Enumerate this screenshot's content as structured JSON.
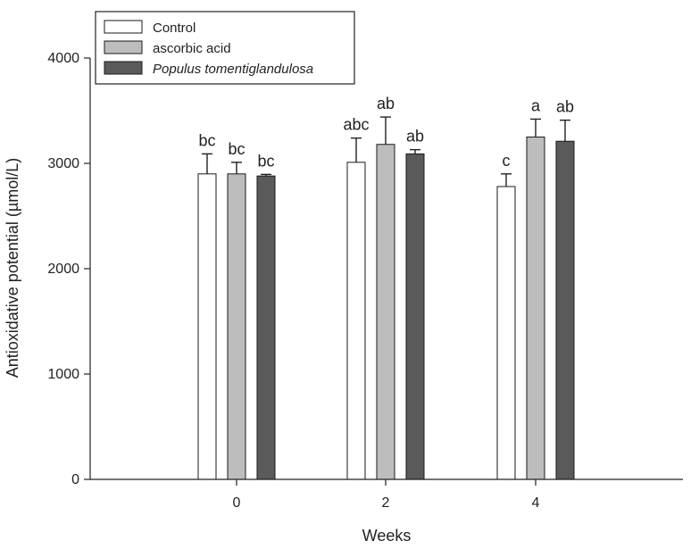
{
  "chart_data": {
    "type": "bar",
    "xlabel": "Weeks",
    "ylabel": "Antioxidative potential (µmol/L)",
    "ylim": [
      0,
      4000
    ],
    "yticks": [
      0,
      1000,
      2000,
      3000,
      4000
    ],
    "categories": [
      "0",
      "2",
      "4"
    ],
    "grid": false,
    "legend_position": "top-left",
    "series": [
      {
        "name": "Control",
        "color": "#ffffff",
        "values": [
          2900,
          3010,
          2780
        ],
        "errors": [
          190,
          230,
          120
        ],
        "labels": [
          "bc",
          "abc",
          "c"
        ]
      },
      {
        "name": "ascorbic acid",
        "color": "#bdbdbd",
        "values": [
          2900,
          3180,
          3250
        ],
        "errors": [
          110,
          260,
          170
        ],
        "labels": [
          "bc",
          "ab",
          "a"
        ]
      },
      {
        "name": "Populus tomentiglandulosa",
        "color": "#5a5a5a",
        "italic": true,
        "values": [
          2880,
          3090,
          3210
        ],
        "errors": [
          15,
          40,
          200
        ],
        "labels": [
          "bc",
          "ab",
          "ab"
        ]
      }
    ]
  }
}
